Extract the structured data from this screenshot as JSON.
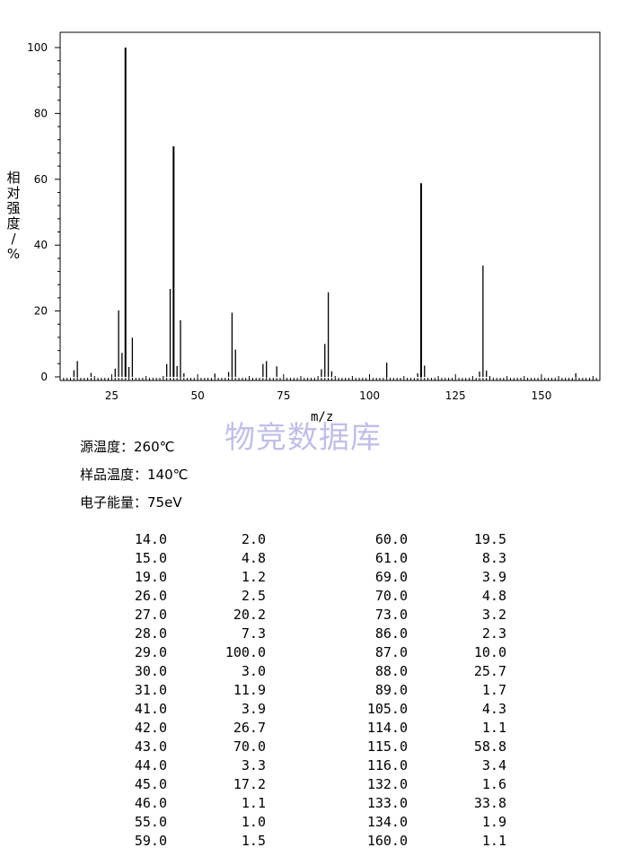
{
  "chart_data": {
    "type": "bar",
    "xlabel": "m/z",
    "ylabel_chars": [
      "相",
      "对",
      "强",
      "度",
      "/",
      "%"
    ],
    "xlim": [
      10,
      167
    ],
    "ylim": [
      0,
      105
    ],
    "xticks": [
      25,
      50,
      75,
      100,
      125,
      150
    ],
    "yticks": [
      0,
      20,
      40,
      60,
      80,
      100
    ],
    "grid": false,
    "peaks": [
      {
        "x": 14.0,
        "y": 2.0
      },
      {
        "x": 15.0,
        "y": 4.8
      },
      {
        "x": 19.0,
        "y": 1.2
      },
      {
        "x": 26.0,
        "y": 2.5
      },
      {
        "x": 27.0,
        "y": 20.2
      },
      {
        "x": 28.0,
        "y": 7.3
      },
      {
        "x": 29.0,
        "y": 100.0
      },
      {
        "x": 30.0,
        "y": 3.0
      },
      {
        "x": 31.0,
        "y": 11.9
      },
      {
        "x": 41.0,
        "y": 3.9
      },
      {
        "x": 42.0,
        "y": 26.7
      },
      {
        "x": 43.0,
        "y": 70.0
      },
      {
        "x": 44.0,
        "y": 3.3
      },
      {
        "x": 45.0,
        "y": 17.2
      },
      {
        "x": 46.0,
        "y": 1.1
      },
      {
        "x": 55.0,
        "y": 1.0
      },
      {
        "x": 59.0,
        "y": 1.5
      },
      {
        "x": 60.0,
        "y": 19.5
      },
      {
        "x": 61.0,
        "y": 8.3
      },
      {
        "x": 69.0,
        "y": 3.9
      },
      {
        "x": 70.0,
        "y": 4.8
      },
      {
        "x": 73.0,
        "y": 3.2
      },
      {
        "x": 86.0,
        "y": 2.3
      },
      {
        "x": 87.0,
        "y": 10.0
      },
      {
        "x": 88.0,
        "y": 25.7
      },
      {
        "x": 89.0,
        "y": 1.7
      },
      {
        "x": 105.0,
        "y": 4.3
      },
      {
        "x": 114.0,
        "y": 1.1
      },
      {
        "x": 115.0,
        "y": 58.8
      },
      {
        "x": 116.0,
        "y": 3.4
      },
      {
        "x": 132.0,
        "y": 1.6
      },
      {
        "x": 133.0,
        "y": 33.8
      },
      {
        "x": 134.0,
        "y": 1.9
      },
      {
        "x": 160.0,
        "y": 1.1
      }
    ]
  },
  "watermark": "物竞数据库",
  "params": {
    "source_temp": "源温度：260℃",
    "sample_temp": "样品温度：140℃",
    "electron_energy": "电子能量：75eV"
  },
  "table": [
    [
      "14.0",
      "2.0",
      "60.0",
      "19.5"
    ],
    [
      "15.0",
      "4.8",
      "61.0",
      "8.3"
    ],
    [
      "19.0",
      "1.2",
      "69.0",
      "3.9"
    ],
    [
      "26.0",
      "2.5",
      "70.0",
      "4.8"
    ],
    [
      "27.0",
      "20.2",
      "73.0",
      "3.2"
    ],
    [
      "28.0",
      "7.3",
      "86.0",
      "2.3"
    ],
    [
      "29.0",
      "100.0",
      "87.0",
      "10.0"
    ],
    [
      "30.0",
      "3.0",
      "88.0",
      "25.7"
    ],
    [
      "31.0",
      "11.9",
      "89.0",
      "1.7"
    ],
    [
      "41.0",
      "3.9",
      "105.0",
      "4.3"
    ],
    [
      "42.0",
      "26.7",
      "114.0",
      "1.1"
    ],
    [
      "43.0",
      "70.0",
      "115.0",
      "58.8"
    ],
    [
      "44.0",
      "3.3",
      "116.0",
      "3.4"
    ],
    [
      "45.0",
      "17.2",
      "132.0",
      "1.6"
    ],
    [
      "46.0",
      "1.1",
      "133.0",
      "33.8"
    ],
    [
      "55.0",
      "1.0",
      "134.0",
      "1.9"
    ],
    [
      "59.0",
      "1.5",
      "160.0",
      "1.1"
    ]
  ]
}
